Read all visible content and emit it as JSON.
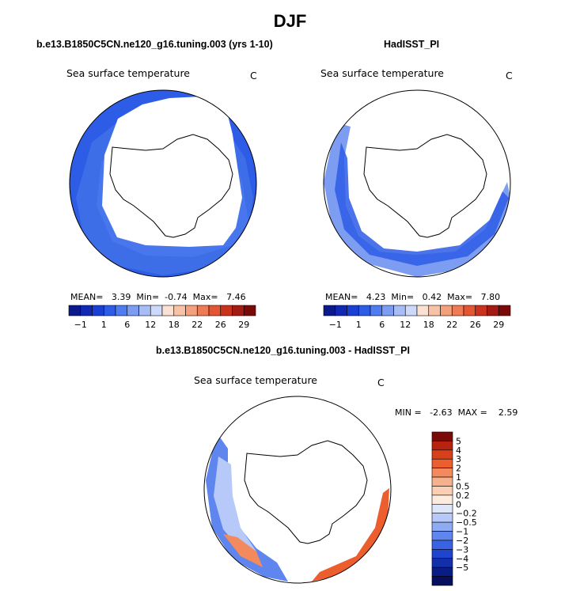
{
  "title": "DJF",
  "panel_left": {
    "header": "b.e13.B1850C5CN.ne120_g16.tuning.003 (yrs 1-10)",
    "variable": "Sea surface temperature",
    "units": "C",
    "mean_label": "MEAN=",
    "mean": "3.39",
    "min_label": "Min=",
    "min": "-0.74",
    "max_label": "Max=",
    "max": "7.46"
  },
  "panel_right": {
    "header": "HadISST_PI",
    "variable": "Sea surface temperature",
    "units": "C",
    "mean_label": "MEAN=",
    "mean": "4.23",
    "min_label": "Min=",
    "min": "0.42",
    "max_label": "Max=",
    "max": "7.80"
  },
  "panel_diff": {
    "header": "b.e13.B1850C5CN.ne120_g16.tuning.003 - HadISST_PI",
    "variable": "Sea surface temperature",
    "units": "C",
    "minmax_text": "MIN =   -2.63  MAX =    2.59"
  },
  "abs_colorbar": {
    "colors": [
      "#0a1a8c",
      "#1029b5",
      "#1a3fd6",
      "#2d5ce6",
      "#4f7cf0",
      "#7d9df2",
      "#a7bdf6",
      "#cdd9fa",
      "#fbe1d2",
      "#f7c2a6",
      "#f4a07c",
      "#ef7b55",
      "#e45532",
      "#c9321c",
      "#a31b12",
      "#7a0a08"
    ],
    "tick_labels": [
      "-1",
      "1",
      "6",
      "12",
      "18",
      "22",
      "26",
      "29"
    ]
  },
  "diff_colorbar": {
    "colors": [
      "#7a0a08",
      "#b8230f",
      "#d8401c",
      "#ec5e2e",
      "#f28a5e",
      "#f7b08c",
      "#fbcfb4",
      "#fdebdd",
      "#dde6fb",
      "#b6c9f8",
      "#8eabf4",
      "#5f85ee",
      "#3a63e3",
      "#1f45cf",
      "#1230ab",
      "#0a1c86",
      "#060f5e"
    ],
    "tick_labels": [
      "5",
      "4",
      "3",
      "2",
      "1",
      "0.5",
      "0.2",
      "0",
      "-0.2",
      "-0.5",
      "-1",
      "-2",
      "-3",
      "-4",
      "-5"
    ]
  },
  "colors": {
    "land": "#ffffff",
    "coastline": "#000000",
    "ocean_cold": "#4f7cf0",
    "ocean_deep": "#2d5ce6",
    "ocean_light": "#7d9df2",
    "warm_anomaly": "#f0864f"
  }
}
